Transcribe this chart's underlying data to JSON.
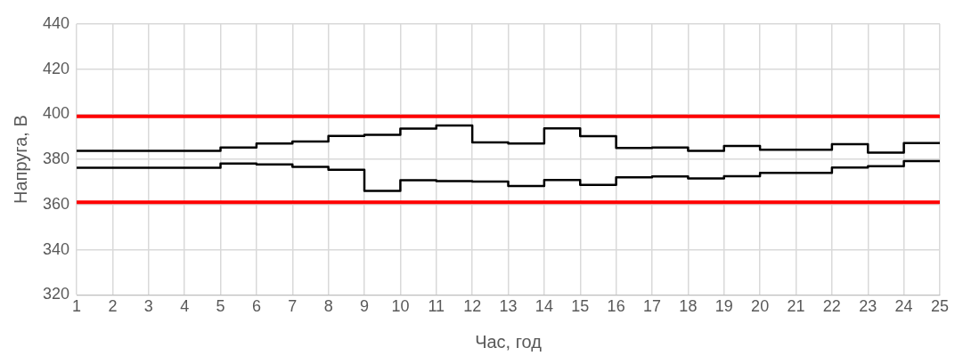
{
  "chart_data": {
    "type": "step",
    "xlabel": "Час, год",
    "ylabel": "Напруга, В",
    "x": [
      1,
      2,
      3,
      4,
      5,
      6,
      7,
      8,
      9,
      10,
      11,
      12,
      13,
      14,
      15,
      16,
      17,
      18,
      19,
      20,
      21,
      22,
      23,
      24,
      25
    ],
    "series": [
      {
        "color": "#000000",
        "values": [
          383.8,
          383.8,
          383.8,
          383.8,
          385.3,
          387.0,
          387.9,
          390.4,
          390.9,
          393.6,
          395.0,
          387.5,
          387.0,
          393.7,
          390.3,
          385.1,
          385.3,
          383.8,
          385.9,
          384.3,
          384.3,
          386.7,
          383.0,
          387.2,
          387.2
        ]
      },
      {
        "color": "#000000",
        "values": [
          376.3,
          376.3,
          376.3,
          376.3,
          378.2,
          377.8,
          376.7,
          375.4,
          366.1,
          370.8,
          370.4,
          370.2,
          368.2,
          370.9,
          368.7,
          372.1,
          372.5,
          371.6,
          372.6,
          374.0,
          374.0,
          376.4,
          377.0,
          379.3,
          379.3
        ]
      }
    ],
    "ref_lines": [
      {
        "axis": "y",
        "value": 399,
        "color": "#ff0000"
      },
      {
        "axis": "y",
        "value": 361,
        "color": "#ff0000"
      }
    ],
    "xlim": [
      1,
      25
    ],
    "xticks": [
      1,
      2,
      3,
      4,
      5,
      6,
      7,
      8,
      9,
      10,
      11,
      12,
      13,
      14,
      15,
      16,
      17,
      18,
      19,
      20,
      21,
      22,
      23,
      24,
      25
    ],
    "ylim": [
      320,
      440
    ],
    "yticks": [
      320,
      340,
      360,
      380,
      400,
      420,
      440
    ],
    "grid": true
  }
}
